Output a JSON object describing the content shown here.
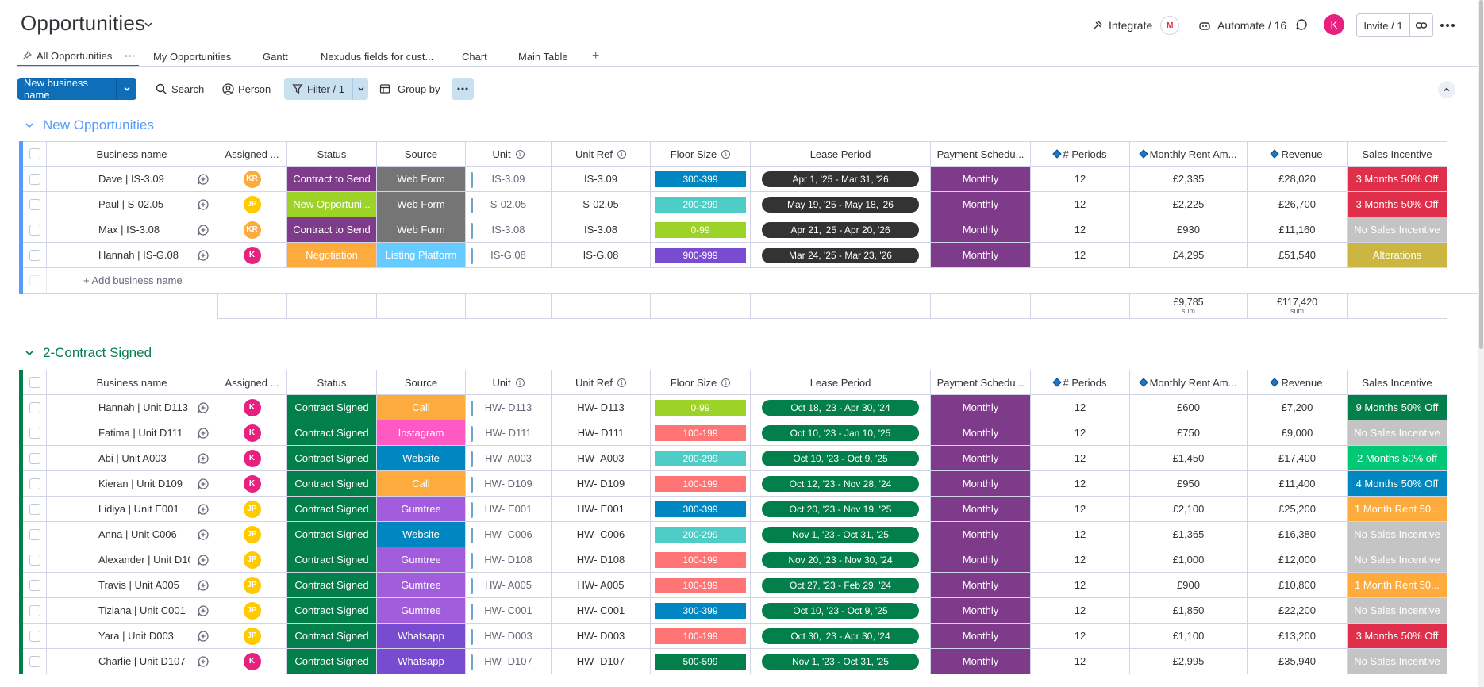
{
  "header": {
    "title": "Opportunities",
    "integrate": "Integrate",
    "automate": "Automate / 16",
    "avatar_initial": "K",
    "invite": "Invite / 1"
  },
  "tabs": [
    {
      "label": "All Opportunities",
      "active": true
    },
    {
      "label": "My Opportunities"
    },
    {
      "label": "Gantt"
    },
    {
      "label": "Nexudus fields for cust..."
    },
    {
      "label": "Chart"
    },
    {
      "label": "Main Table"
    },
    {
      "label": "+"
    }
  ],
  "toolbar": {
    "new_button": "New business name",
    "search": "Search",
    "person": "Person",
    "filter": "Filter / 1",
    "group_by": "Group by"
  },
  "columns": [
    "Business name",
    "Assigned ...",
    "Status",
    "Source",
    "Unit",
    "Unit Ref",
    "Floor Size",
    "Lease Period",
    "Payment Schedu...",
    "# Periods",
    "Monthly Rent Am...",
    "Revenue",
    "Sales Incentive"
  ],
  "colors": {
    "blue_group": "#579bfc",
    "green_group": "#037f4c",
    "monthly": "#7e3b8a",
    "contract_to_send": "#7e3b8a",
    "contract_signed": "#037f4c",
    "new_opportunity": "#9cd326",
    "negotiation": "#fdab3d",
    "web_form": "#757575",
    "listing_platform": "#66ccff",
    "call": "#fdab3d",
    "instagram": "#ff5ac4",
    "website": "#0086c0",
    "gumtree": "#a25ddc",
    "whatsapp": "#784bd1"
  },
  "groups": [
    {
      "title": "New Opportunities",
      "color": "#579bfc",
      "add_label": "+ Add business name",
      "sum_rent": "£9,785",
      "sum_revenue": "£117,420",
      "sum_label": "sum",
      "rows": [
        {
          "name": "Dave | IS-3.09",
          "av": "KR",
          "avc": "#fdab3d",
          "status": "Contract to Send",
          "stc": "#7e3b8a",
          "source": "Web Form",
          "src": "#757575",
          "unit": "IS-3.09",
          "ref": "IS-3.09",
          "fs": "300-399",
          "fsc": "#0086c0",
          "lease": "Apr 1, '25 - Mar 31, '26",
          "lc": "#333333",
          "pay": "Monthly",
          "periods": "12",
          "rent": "£2,335",
          "rev": "£28,020",
          "inc": "3 Months 50% Off",
          "incc": "#df2f4a"
        },
        {
          "name": "Paul | S-02.05",
          "av": "JP",
          "avc": "#ffcb00",
          "status": "New Opportuni...",
          "stc": "#9cd326",
          "source": "Web Form",
          "src": "#757575",
          "unit": "S-02.05",
          "ref": "S-02.05",
          "fs": "200-299",
          "fsc": "#4eccc6",
          "lease": "May 19, '25 - May 18, '26",
          "lc": "#333333",
          "pay": "Monthly",
          "periods": "12",
          "rent": "£2,225",
          "rev": "£26,700",
          "inc": "3 Months 50% Off",
          "incc": "#df2f4a"
        },
        {
          "name": "Max | IS-3.08",
          "av": "KR",
          "avc": "#fdab3d",
          "status": "Contract to Send",
          "stc": "#7e3b8a",
          "source": "Web Form",
          "src": "#757575",
          "unit": "IS-3.08",
          "ref": "IS-3.08",
          "fs": "0-99",
          "fsc": "#9cd326",
          "lease": "Apr 21, '25 - Apr 20, '26",
          "lc": "#333333",
          "pay": "Monthly",
          "periods": "12",
          "rent": "£930",
          "rev": "£11,160",
          "inc": "No Sales Incentive",
          "incc": "#c4c4c4"
        },
        {
          "name": "Hannah | IS-G.08",
          "av": "K",
          "avc": "#e8207f",
          "status": "Negotiation",
          "stc": "#fdab3d",
          "source": "Listing Platform",
          "src": "#66ccff",
          "unit": "IS-G.08",
          "ref": "IS-G.08",
          "fs": "900-999",
          "fsc": "#784bd1",
          "lease": "Mar 24, '25 - Mar 23, '26",
          "lc": "#333333",
          "pay": "Monthly",
          "periods": "12",
          "rent": "£4,295",
          "rev": "£51,540",
          "inc": "Alterations",
          "incc": "#cab641"
        }
      ]
    },
    {
      "title": "2-Contract Signed",
      "color": "#037f4c",
      "rows": [
        {
          "name": "Hannah | Unit D113",
          "av": "K",
          "avc": "#e8207f",
          "status": "Contract Signed",
          "stc": "#037f4c",
          "source": "Call",
          "src": "#fdab3d",
          "unit": "HW- D113",
          "ref": "HW- D113",
          "fs": "0-99",
          "fsc": "#9cd326",
          "lease": "Oct 18, '23 - Apr 30, '24",
          "lc": "#037f4c",
          "pay": "Monthly",
          "periods": "12",
          "rent": "£600",
          "rev": "£7,200",
          "inc": "9 Months 50% Off",
          "incc": "#037f4c"
        },
        {
          "name": "Fatima | Unit D111",
          "av": "K",
          "avc": "#e8207f",
          "status": "Contract Signed",
          "stc": "#037f4c",
          "source": "Instagram",
          "src": "#ff5ac4",
          "unit": "HW- D111",
          "ref": "HW- D111",
          "fs": "100-199",
          "fsc": "#ff7575",
          "lease": "Oct 10, '23 - Jan 10, '25",
          "lc": "#037f4c",
          "pay": "Monthly",
          "periods": "12",
          "rent": "£750",
          "rev": "£9,000",
          "inc": "No Sales Incentive",
          "incc": "#c4c4c4"
        },
        {
          "name": "Abi | Unit A003",
          "av": "K",
          "avc": "#e8207f",
          "status": "Contract Signed",
          "stc": "#037f4c",
          "source": "Website",
          "src": "#0086c0",
          "unit": "HW- A003",
          "ref": "HW- A003",
          "fs": "200-299",
          "fsc": "#4eccc6",
          "lease": "Oct 10, '23 - Oct 9, '25",
          "lc": "#037f4c",
          "pay": "Monthly",
          "periods": "12",
          "rent": "£1,450",
          "rev": "£17,400",
          "inc": "2 Months 50% off",
          "incc": "#00c875"
        },
        {
          "name": "Kieran | Unit D109",
          "av": "K",
          "avc": "#e8207f",
          "status": "Contract Signed",
          "stc": "#037f4c",
          "source": "Call",
          "src": "#fdab3d",
          "unit": "HW- D109",
          "ref": "HW- D109",
          "fs": "100-199",
          "fsc": "#ff7575",
          "lease": "Oct 12, '23 - Nov 28, '24",
          "lc": "#037f4c",
          "pay": "Monthly",
          "periods": "12",
          "rent": "£950",
          "rev": "£11,400",
          "inc": "4 Months 50% Off",
          "incc": "#0086c0"
        },
        {
          "name": "Lidiya | Unit E001",
          "av": "JP",
          "avc": "#ffcb00",
          "status": "Contract Signed",
          "stc": "#037f4c",
          "source": "Gumtree",
          "src": "#a25ddc",
          "unit": "HW- E001",
          "ref": "HW- E001",
          "fs": "300-399",
          "fsc": "#0086c0",
          "lease": "Oct 20, '23 - Nov 19, '25",
          "lc": "#037f4c",
          "pay": "Monthly",
          "periods": "12",
          "rent": "£2,100",
          "rev": "£25,200",
          "inc": "1 Month Rent 50...",
          "incc": "#fdab3d"
        },
        {
          "name": "Anna | Unit C006",
          "av": "JP",
          "avc": "#ffcb00",
          "status": "Contract Signed",
          "stc": "#037f4c",
          "source": "Website",
          "src": "#0086c0",
          "unit": "HW- C006",
          "ref": "HW- C006",
          "fs": "200-299",
          "fsc": "#4eccc6",
          "lease": "Nov 1, '23 - Oct 31, '25",
          "lc": "#037f4c",
          "pay": "Monthly",
          "periods": "12",
          "rent": "£1,365",
          "rev": "£16,380",
          "inc": "No Sales Incentive",
          "incc": "#c4c4c4"
        },
        {
          "name": "Alexander | Unit D108",
          "av": "JP",
          "avc": "#ffcb00",
          "status": "Contract Signed",
          "stc": "#037f4c",
          "source": "Gumtree",
          "src": "#a25ddc",
          "unit": "HW- D108",
          "ref": "HW- D108",
          "fs": "100-199",
          "fsc": "#ff7575",
          "lease": "Nov 20, '23 - Nov 30, '24",
          "lc": "#037f4c",
          "pay": "Monthly",
          "periods": "12",
          "rent": "£1,000",
          "rev": "£12,000",
          "inc": "No Sales Incentive",
          "incc": "#c4c4c4"
        },
        {
          "name": "Travis | Unit A005",
          "av": "JP",
          "avc": "#ffcb00",
          "status": "Contract Signed",
          "stc": "#037f4c",
          "source": "Gumtree",
          "src": "#a25ddc",
          "unit": "HW- A005",
          "ref": "HW- A005",
          "fs": "100-199",
          "fsc": "#ff7575",
          "lease": "Oct 27, '23 - Feb 29, '24",
          "lc": "#037f4c",
          "pay": "Monthly",
          "periods": "12",
          "rent": "£900",
          "rev": "£10,800",
          "inc": "1 Month Rent 50...",
          "incc": "#fdab3d"
        },
        {
          "name": "Tiziana | Unit C001",
          "av": "JP",
          "avc": "#ffcb00",
          "status": "Contract Signed",
          "stc": "#037f4c",
          "source": "Gumtree",
          "src": "#a25ddc",
          "unit": "HW- C001",
          "ref": "HW- C001",
          "fs": "300-399",
          "fsc": "#0086c0",
          "lease": "Oct 10, '23 - Oct 9, '25",
          "lc": "#037f4c",
          "pay": "Monthly",
          "periods": "12",
          "rent": "£1,850",
          "rev": "£22,200",
          "inc": "No Sales Incentive",
          "incc": "#c4c4c4"
        },
        {
          "name": "Yara | Unit D003",
          "av": "JP",
          "avc": "#ffcb00",
          "status": "Contract Signed",
          "stc": "#037f4c",
          "source": "Whatsapp",
          "src": "#784bd1",
          "unit": "HW- D003",
          "ref": "HW- D003",
          "fs": "100-199",
          "fsc": "#ff7575",
          "lease": "Oct 30, '23 - Apr 30, '24",
          "lc": "#037f4c",
          "pay": "Monthly",
          "periods": "12",
          "rent": "£1,100",
          "rev": "£13,200",
          "inc": "3 Months 50% Off",
          "incc": "#df2f4a"
        },
        {
          "name": "Charlie | Unit D107",
          "av": "K",
          "avc": "#e8207f",
          "status": "Contract Signed",
          "stc": "#037f4c",
          "source": "Whatsapp",
          "src": "#784bd1",
          "unit": "HW- D107",
          "ref": "HW- D107",
          "fs": "500-599",
          "fsc": "#037f4c",
          "lease": "Nov 1, '23 - Oct 31, '25",
          "lc": "#037f4c",
          "pay": "Monthly",
          "periods": "12",
          "rent": "£2,995",
          "rev": "£35,940",
          "inc": "No Sales Incentive",
          "incc": "#c4c4c4"
        }
      ]
    }
  ]
}
